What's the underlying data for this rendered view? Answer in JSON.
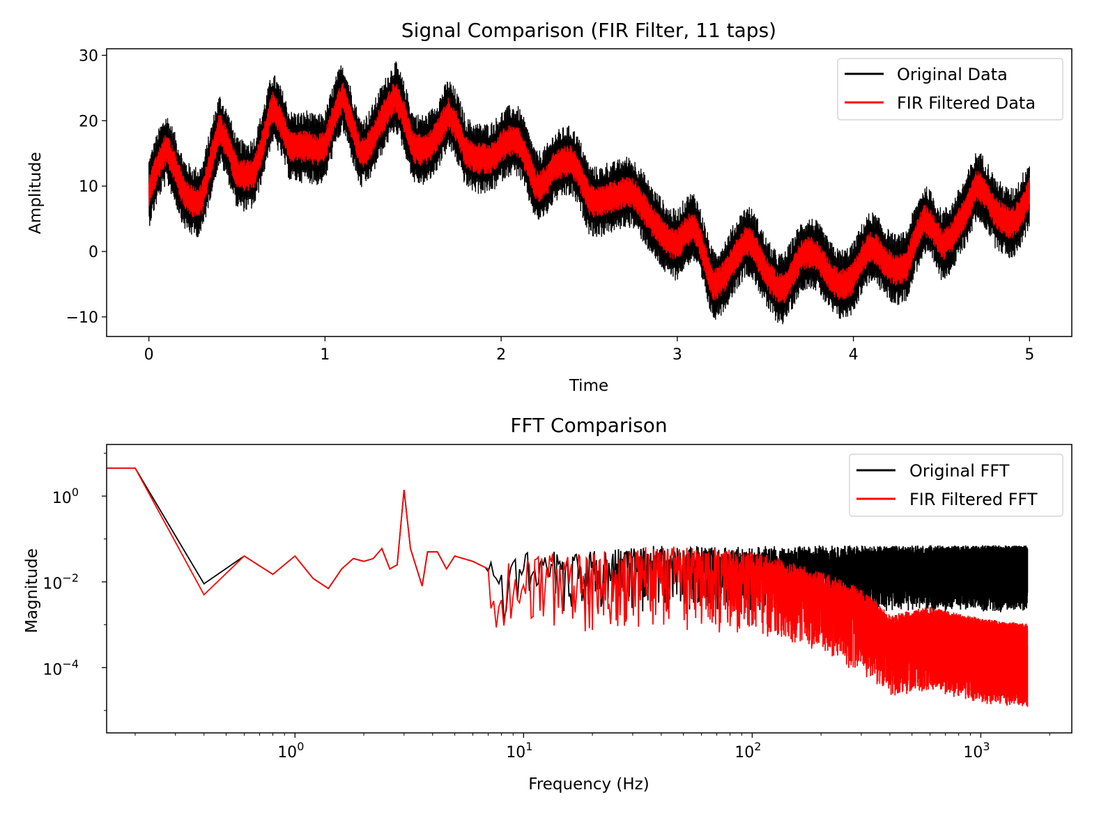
{
  "colors": {
    "original": "#000000",
    "filtered": "#ff0000",
    "background": "#ffffff",
    "legend_border": "#cccccc"
  },
  "chart_data": [
    {
      "type": "line",
      "title": "Signal Comparison (FIR Filter, 11 taps)",
      "xlabel": "Time",
      "ylabel": "Amplitude",
      "xlim": [
        -0.24,
        5.24
      ],
      "ylim": [
        -13,
        31
      ],
      "xticks": [
        0,
        1,
        2,
        3,
        4,
        5
      ],
      "xtick_labels": [
        "0",
        "1",
        "2",
        "3",
        "4",
        "5"
      ],
      "yticks": [
        -10,
        0,
        10,
        20,
        30
      ],
      "ytick_labels": [
        "−10",
        "0",
        "10",
        "20",
        "30"
      ],
      "grid": false,
      "legend_position": "top-right",
      "series": [
        {
          "name": "Original Data",
          "color": "#000000",
          "noise_amplitude": 5.5,
          "x": [
            0,
            0.1,
            0.2,
            0.3,
            0.4,
            0.5,
            0.6,
            0.7,
            0.8,
            0.9,
            1.0,
            1.1,
            1.2,
            1.3,
            1.4,
            1.5,
            1.6,
            1.7,
            1.8,
            1.9,
            2.0,
            2.1,
            2.2,
            2.3,
            2.4,
            2.5,
            2.6,
            2.7,
            2.8,
            2.9,
            3.0,
            3.1,
            3.2,
            3.3,
            3.4,
            3.5,
            3.6,
            3.7,
            3.8,
            3.9,
            4.0,
            4.1,
            4.2,
            4.3,
            4.4,
            4.5,
            4.6,
            4.7,
            4.8,
            4.9,
            5.0
          ],
          "y": [
            9,
            14,
            10,
            9,
            17,
            12,
            14,
            21,
            15,
            18,
            16,
            22,
            16,
            20,
            22,
            16,
            18,
            20,
            14,
            16,
            16,
            15,
            11,
            14,
            12,
            8,
            10,
            8,
            6,
            5,
            1,
            2,
            -4,
            -1,
            0,
            -3,
            -4,
            -2,
            -2,
            -3,
            -4,
            -1,
            -1,
            -1,
            3,
            1,
            6,
            9,
            5,
            6,
            9
          ]
        },
        {
          "name": "FIR Filtered Data",
          "color": "#ff0000",
          "noise_amplitude": 2.5,
          "x": [
            0,
            0.1,
            0.2,
            0.3,
            0.4,
            0.5,
            0.6,
            0.7,
            0.8,
            0.9,
            1.0,
            1.1,
            1.2,
            1.3,
            1.4,
            1.5,
            1.6,
            1.7,
            1.8,
            1.9,
            2.0,
            2.1,
            2.2,
            2.3,
            2.4,
            2.5,
            2.6,
            2.7,
            2.8,
            2.9,
            3.0,
            3.1,
            3.2,
            3.3,
            3.4,
            3.5,
            3.6,
            3.7,
            3.8,
            3.9,
            4.0,
            4.1,
            4.2,
            4.3,
            4.4,
            4.5,
            4.6,
            4.7,
            4.8,
            4.9,
            5.0
          ],
          "y": [
            9,
            14,
            10,
            9,
            17,
            12,
            14,
            21,
            15,
            18,
            16,
            22,
            16,
            20,
            22,
            16,
            18,
            20,
            14,
            16,
            16,
            15,
            11,
            14,
            12,
            8,
            10,
            8,
            6,
            5,
            1,
            2,
            -4,
            -1,
            0,
            -3,
            -4,
            -2,
            -2,
            -3,
            -4,
            -1,
            -1,
            -1,
            3,
            1,
            6,
            9,
            5,
            6,
            9
          ]
        }
      ]
    },
    {
      "type": "line",
      "title": "FFT Comparison",
      "xlabel": "Frequency (Hz)",
      "ylabel": "Magnitude",
      "xscale": "log",
      "yscale": "log",
      "xlim": [
        0.15,
        2500
      ],
      "ylim": [
        3e-06,
        16
      ],
      "xticks": [
        1,
        10,
        100,
        1000
      ],
      "xtick_labels": [
        {
          "base": "10",
          "exp": "0"
        },
        {
          "base": "10",
          "exp": "1"
        },
        {
          "base": "10",
          "exp": "2"
        },
        {
          "base": "10",
          "exp": "3"
        }
      ],
      "yticks": [
        1,
        0.01,
        0.0001
      ],
      "ytick_labels": [
        {
          "base": "10",
          "exp": "0"
        },
        {
          "base": "10",
          "exp": "−2"
        },
        {
          "base": "10",
          "exp": "−4"
        }
      ],
      "grid": false,
      "legend_position": "top-right",
      "series": [
        {
          "name": "Original FFT",
          "color": "#000000",
          "x": [
            0.15,
            0.2,
            0.4,
            0.6,
            0.8,
            1.0,
            1.2,
            1.4,
            1.6,
            1.8,
            2.0,
            2.2,
            2.4,
            2.6,
            2.8,
            3.0,
            3.2,
            3.6,
            3.8,
            4.2,
            4.6,
            5.0,
            6.0,
            7.0,
            8.0,
            10,
            20,
            40,
            80,
            120,
            200,
            300,
            400,
            600,
            1000,
            1600
          ],
          "y": [
            4.5,
            4.5,
            0.009,
            0.04,
            0.015,
            0.04,
            0.012,
            0.007,
            0.02,
            0.035,
            0.03,
            0.035,
            0.06,
            0.02,
            0.025,
            1.4,
            0.06,
            0.008,
            0.05,
            0.05,
            0.02,
            0.04,
            0.03,
            0.02,
            0.02,
            0.03,
            0.03,
            0.04,
            0.04,
            0.04,
            0.04,
            0.04,
            0.04,
            0.04,
            0.04,
            0.04
          ],
          "noise_span_from_x": 7,
          "noise_decades": 0.6
        },
        {
          "name": "FIR Filtered FFT",
          "color": "#ff0000",
          "x": [
            0.15,
            0.2,
            0.4,
            0.6,
            0.8,
            1.0,
            1.2,
            1.4,
            1.6,
            1.8,
            2.0,
            2.2,
            2.4,
            2.6,
            2.8,
            3.0,
            3.2,
            3.6,
            3.8,
            4.2,
            4.6,
            5.0,
            6.0,
            7.0,
            8.0,
            10,
            20,
            40,
            80,
            120,
            200,
            300,
            400,
            600,
            1000,
            1600
          ],
          "y": [
            4.5,
            4.5,
            0.005,
            0.04,
            0.015,
            0.04,
            0.012,
            0.007,
            0.02,
            0.035,
            0.03,
            0.035,
            0.06,
            0.02,
            0.025,
            1.4,
            0.06,
            0.008,
            0.05,
            0.05,
            0.02,
            0.04,
            0.03,
            0.02,
            0.02,
            0.03,
            0.03,
            0.04,
            0.035,
            0.025,
            0.01,
            0.004,
            0.001,
            0.0015,
            0.0008,
            0.0006
          ],
          "noise_span_from_x": 7,
          "noise_decades": 0.8
        }
      ]
    }
  ]
}
